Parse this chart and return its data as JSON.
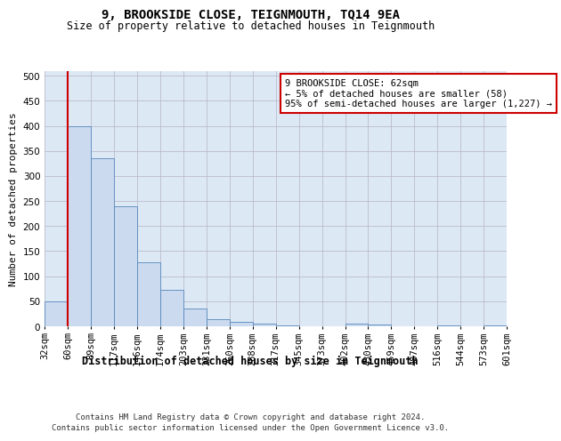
{
  "title": "9, BROOKSIDE CLOSE, TEIGNMOUTH, TQ14 9EA",
  "subtitle": "Size of property relative to detached houses in Teignmouth",
  "xlabel": "Distribution of detached houses by size in Teignmouth",
  "ylabel": "Number of detached properties",
  "bar_values": [
    50,
    400,
    335,
    240,
    128,
    72,
    35,
    15,
    8,
    6,
    1,
    0,
    0,
    5,
    4,
    0,
    0,
    2,
    0,
    2
  ],
  "bar_labels": [
    "32sqm",
    "60sqm",
    "89sqm",
    "117sqm",
    "146sqm",
    "174sqm",
    "203sqm",
    "231sqm",
    "260sqm",
    "288sqm",
    "317sqm",
    "345sqm",
    "373sqm",
    "402sqm",
    "430sqm",
    "459sqm",
    "487sqm",
    "516sqm",
    "544sqm",
    "573sqm",
    "601sqm"
  ],
  "bar_color": "#ccdaf0",
  "bar_edge_color": "#5588bb",
  "grid_color": "#bbbbcc",
  "background_color": "#dde8f5",
  "annotation_text": "9 BROOKSIDE CLOSE: 62sqm\n← 5% of detached houses are smaller (58)\n95% of semi-detached houses are larger (1,227) →",
  "annotation_box_color": "#ffffff",
  "annotation_box_edge": "#cc0000",
  "red_line_color": "#cc0000",
  "red_line_x": 0.5,
  "ylim": [
    0,
    510
  ],
  "yticks": [
    0,
    50,
    100,
    150,
    200,
    250,
    300,
    350,
    400,
    450,
    500
  ],
  "footer_line1": "Contains HM Land Registry data © Crown copyright and database right 2024.",
  "footer_line2": "Contains public sector information licensed under the Open Government Licence v3.0.",
  "title_fontsize": 10,
  "subtitle_fontsize": 8.5,
  "ylabel_fontsize": 8,
  "xlabel_fontsize": 8.5,
  "tick_fontsize": 7.5,
  "footer_fontsize": 6.5,
  "annot_fontsize": 7.5
}
